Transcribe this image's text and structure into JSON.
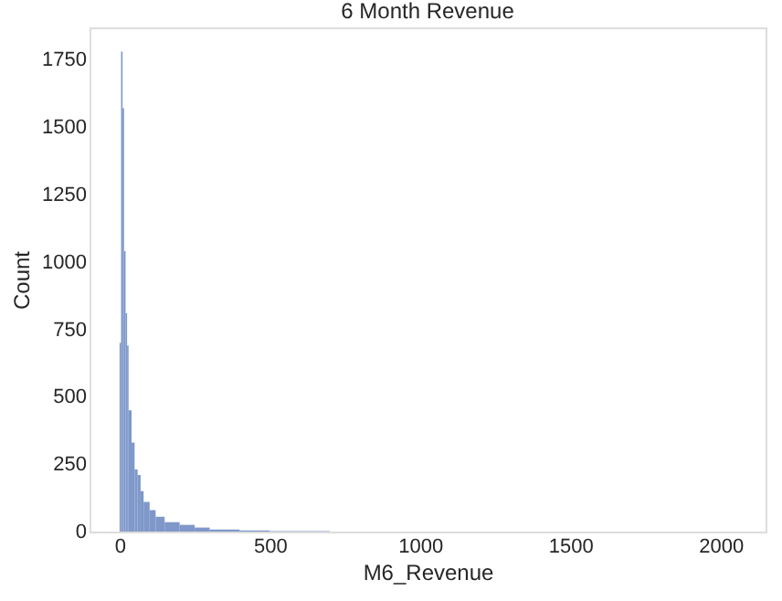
{
  "chart_data": {
    "type": "histogram",
    "title": "6 Month Revenue",
    "xlabel": "M6_Revenue",
    "ylabel": "Count",
    "bins": [
      0,
      5,
      10,
      15,
      20,
      25,
      30,
      40,
      50,
      60,
      70,
      80,
      100,
      120,
      150,
      200,
      250,
      300,
      400,
      500,
      700
    ],
    "values": [
      700,
      1780,
      1570,
      1040,
      810,
      690,
      450,
      330,
      230,
      210,
      150,
      110,
      80,
      55,
      35,
      25,
      15,
      8,
      4,
      2
    ],
    "color": "#7f98c9",
    "xlim": [
      -100,
      2150
    ],
    "xticks": [
      0,
      500,
      1000,
      1500,
      2000
    ],
    "ylim": [
      0,
      1870
    ],
    "yticks": [
      0,
      250,
      500,
      750,
      1000,
      1250,
      1500,
      1750
    ],
    "grid": false
  }
}
